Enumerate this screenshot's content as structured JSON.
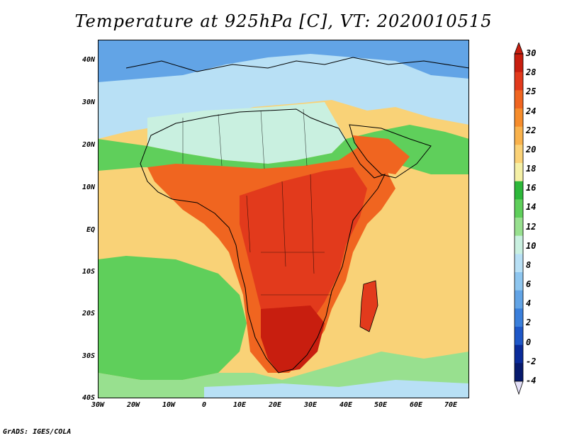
{
  "title": "Temperature at 925hPa [C], VT: 2020010515",
  "credit": "GrADS: IGES/COLA",
  "lat_labels": [
    "40N",
    "30N",
    "20N",
    "10N",
    "EQ",
    "10S",
    "20S",
    "30S",
    "40S"
  ],
  "lon_labels": [
    "30W",
    "20W",
    "10W",
    "0",
    "10E",
    "20E",
    "30E",
    "40E",
    "50E",
    "60E",
    "70E"
  ],
  "colorbar": {
    "labels": [
      "30",
      "28",
      "25",
      "24",
      "22",
      "20",
      "18",
      "16",
      "14",
      "12",
      "10",
      "8",
      "6",
      "4",
      "2",
      "0",
      "-2",
      "-4"
    ],
    "colors": [
      "#c81e0f",
      "#e23a1c",
      "#f06520",
      "#f68c2b",
      "#f9b24c",
      "#fbd277",
      "#f5f0a6",
      "#2db83a",
      "#5fcf5b",
      "#98e08f",
      "#c9f0e0",
      "#b8e0f5",
      "#8ec6ef",
      "#62a4e6",
      "#3a7fdb",
      "#1e57c8",
      "#0a2b9a",
      "#071a6e"
    ],
    "top_color": "#c81e0f",
    "bottom_color": "#e4e0f8"
  }
}
